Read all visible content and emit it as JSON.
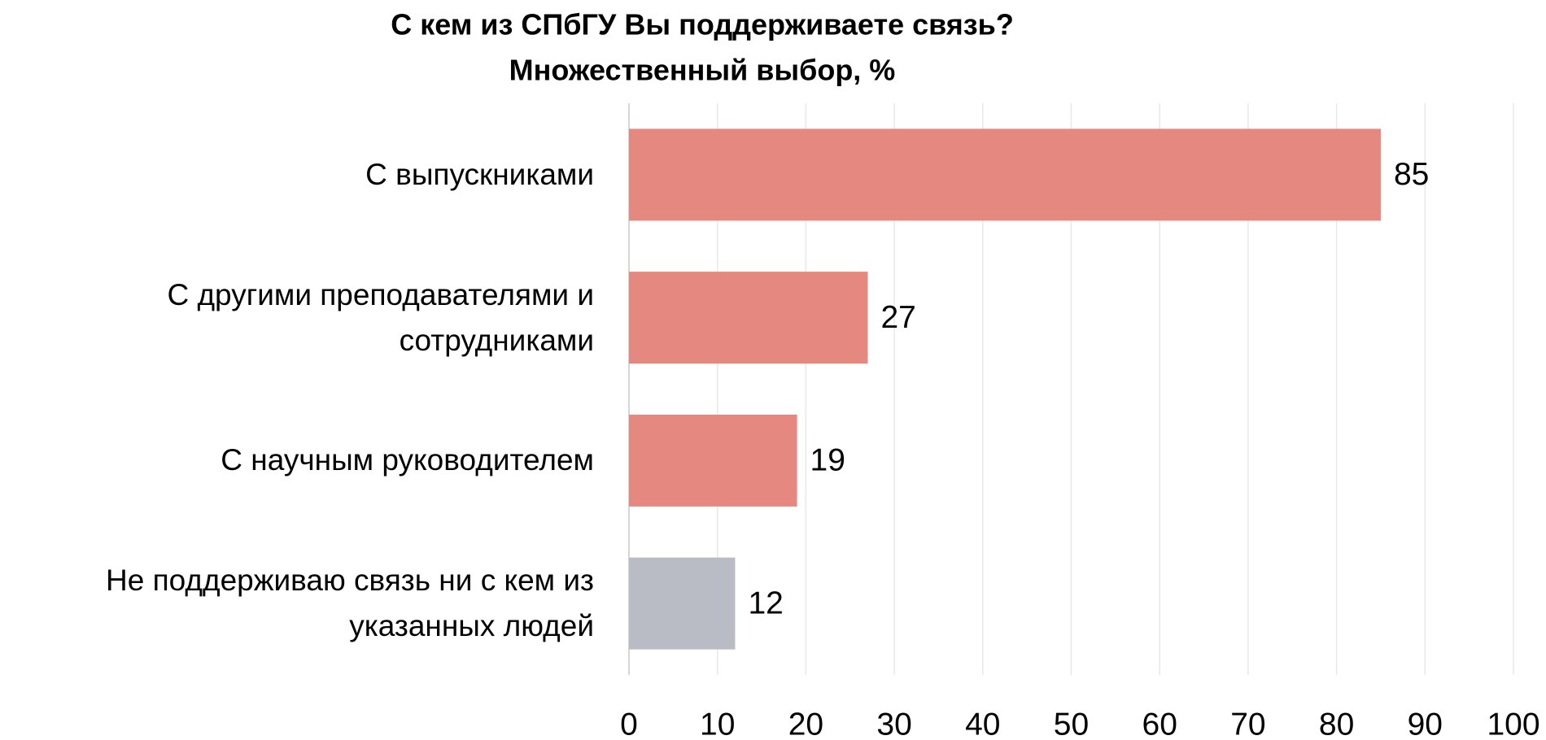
{
  "chart_data": {
    "type": "bar",
    "orientation": "horizontal",
    "title": "С кем из СПбГУ Вы поддерживаете связь?",
    "subtitle": "Множественный выбор, %",
    "categories": [
      "С выпускниками",
      "С другими преподавателями и сотрудниками",
      "С научным руководителем",
      "Не поддерживаю связь ни с кем из указанных людей"
    ],
    "values": [
      85,
      27,
      19,
      12
    ],
    "colors": [
      "#e5887f",
      "#e5887f",
      "#e5887f",
      "#b9bcc4"
    ],
    "xlim": [
      0,
      100
    ],
    "xticks": [
      0,
      10,
      20,
      30,
      40,
      50,
      60,
      70,
      80,
      90,
      100
    ],
    "grid": true
  }
}
